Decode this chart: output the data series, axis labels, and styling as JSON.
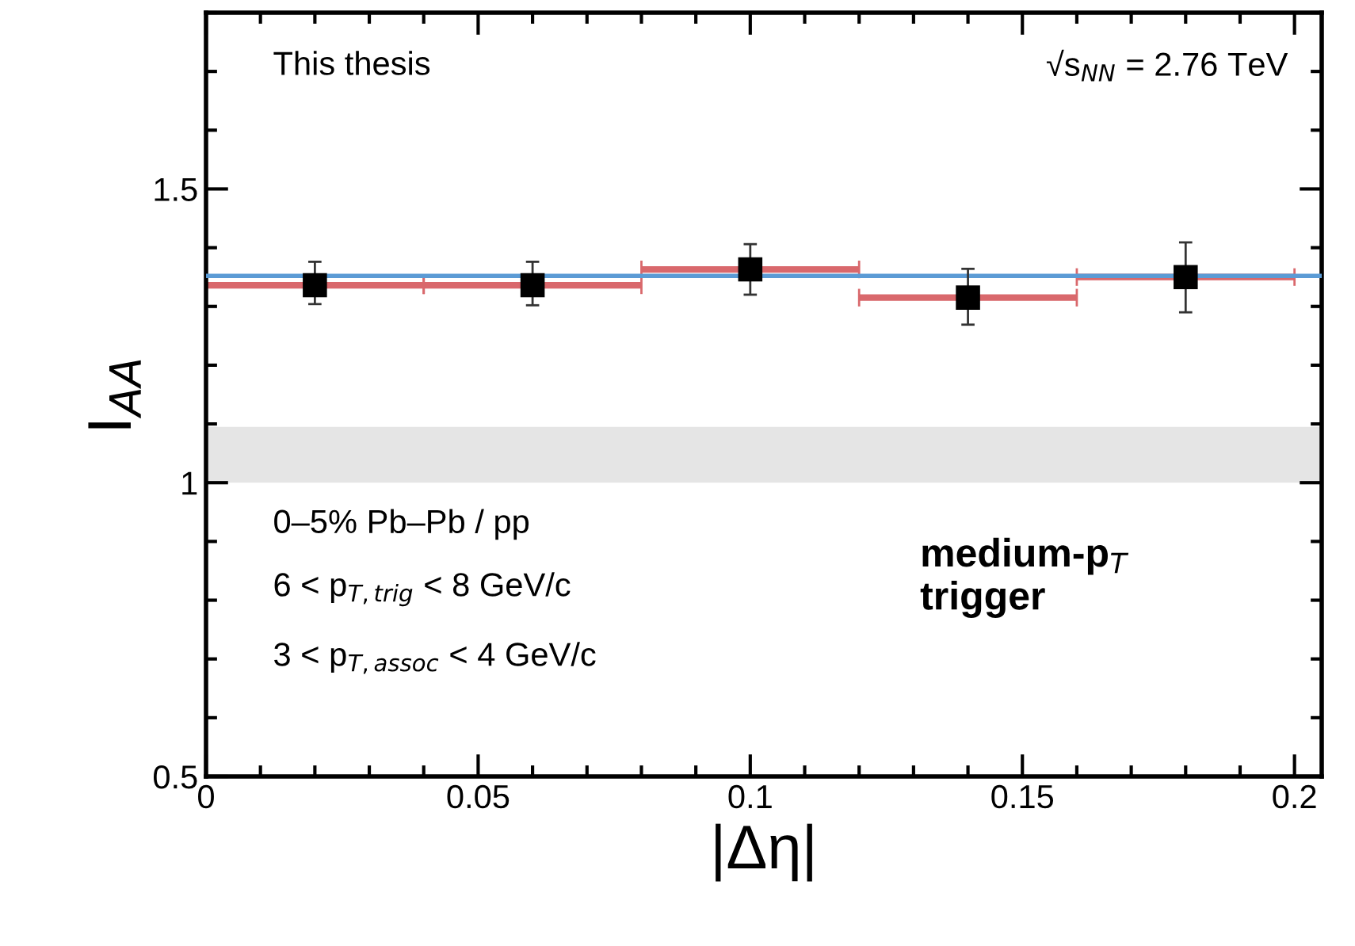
{
  "chart_data": {
    "type": "scatter",
    "xlabel": "|Δη|",
    "ylabel": "I$_{AA}$",
    "x": [
      0.02,
      0.06,
      0.1,
      0.14,
      0.18
    ],
    "series": [
      {
        "color": "#000000",
        "values": [
          1.336,
          1.336,
          1.363,
          1.315,
          1.35
        ],
        "errors": [
          [
            1.304,
            1.376
          ],
          [
            1.302,
            1.376
          ],
          [
            1.32,
            1.406
          ],
          [
            1.269,
            1.364
          ],
          [
            1.29,
            1.409
          ]
        ],
        "xerrors": [
          0.02,
          0.02,
          0.02,
          0.02,
          0.02
        ]
      }
    ],
    "marker": "square",
    "xlim": [
      0,
      0.205
    ],
    "xticks": [
      0,
      0.05,
      0.1,
      0.15,
      0.2
    ],
    "ylim": [
      0.5,
      1.8
    ],
    "yticks": [
      0.5,
      1,
      1.5
    ],
    "ref_lines": [
      {
        "axis": "y",
        "value": 1.352,
        "color": "#5b9bd5"
      }
    ],
    "bands": [
      {
        "axis": "y",
        "from": 1.0,
        "to": 1.095,
        "color": "#e5e5e5"
      }
    ],
    "grid": false,
    "annotations": [
      "This thesis",
      "√s$_{NN}$ = 2.76 TeV",
      "0–5% Pb–Pb / pp",
      "6 < p$_{T,trig}$ < 8 GeV/c",
      "3 < p$_{T,assoc}$ < 4 GeV/c",
      "medium-p$_{T}$\ntrigger"
    ]
  }
}
